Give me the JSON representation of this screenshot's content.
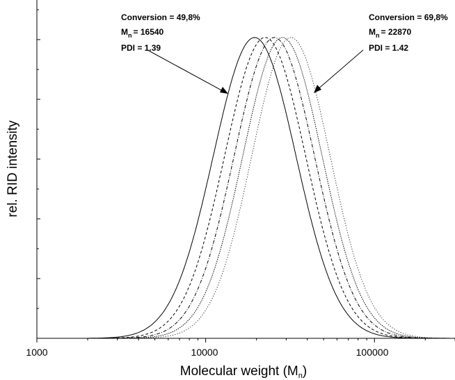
{
  "chart_data": {
    "type": "line",
    "title": "",
    "xlabel": "Molecular weight (M",
    "xlabel_sub": "n",
    "ylabel": "rel. RID intensity",
    "xscale": "log",
    "xlim": [
      1000,
      300000
    ],
    "ylim": [
      0,
      1
    ],
    "grid": false,
    "x_ticks": [
      1000,
      10000,
      100000
    ],
    "x_tick_labels": [
      "1000",
      "10000",
      "100000"
    ],
    "y_tick_labels_shown": false,
    "series": [
      {
        "peak_mw": 19500,
        "sigma_log10": 0.245,
        "style": "solid"
      },
      {
        "peak_mw": 22500,
        "sigma_log10": 0.24,
        "style": "dashed"
      },
      {
        "peak_mw": 25500,
        "sigma_log10": 0.238,
        "style": "dashdot"
      },
      {
        "peak_mw": 28500,
        "sigma_log10": 0.235,
        "style": "dotted"
      },
      {
        "peak_mw": 32000,
        "sigma_log10": 0.232,
        "style": "dotted-fine"
      }
    ],
    "annotations": [
      {
        "lines": [
          "Conversion = 49,8%",
          "M",
          "PDI = 1.39"
        ],
        "mn_sub": "n",
        "mn_value": "= 16540",
        "arrow_target_x": 14000,
        "arrow_target_y": 0.82,
        "position": "upper-left"
      },
      {
        "lines": [
          "Conversion = 69,8%",
          "M",
          "PDI = 1.42"
        ],
        "mn_sub": "n",
        "mn_value": "= 22870",
        "arrow_target_x": 46000,
        "arrow_target_y": 0.82,
        "position": "upper-right"
      }
    ]
  }
}
